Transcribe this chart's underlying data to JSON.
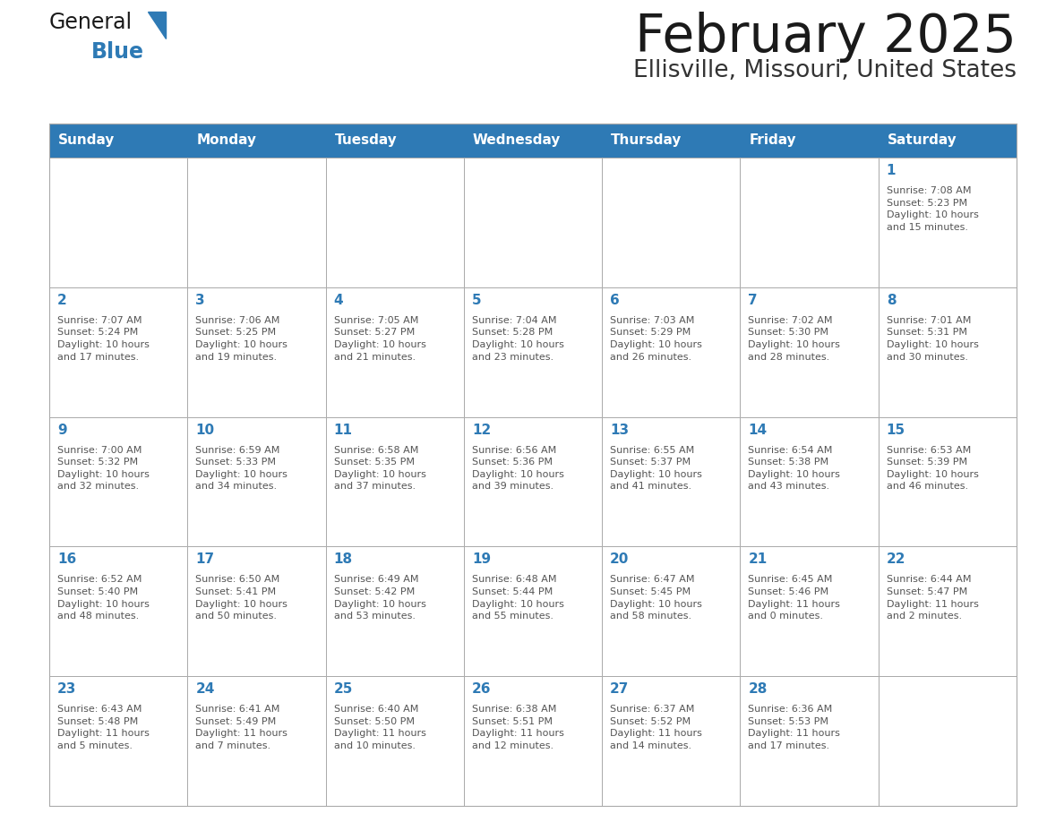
{
  "title": "February 2025",
  "subtitle": "Ellisville, Missouri, United States",
  "header_bg": "#2E7AB5",
  "header_text_color": "#FFFFFF",
  "header_days": [
    "Sunday",
    "Monday",
    "Tuesday",
    "Wednesday",
    "Thursday",
    "Friday",
    "Saturday"
  ],
  "cell_bg": "#FFFFFF",
  "cell_bg_alt": "#F5F5F5",
  "cell_border": "#AAAAAA",
  "day_number_color": "#2E7AB5",
  "info_text_color": "#555555",
  "title_color": "#1A1A1A",
  "subtitle_color": "#333333",
  "logo_general_color": "#1A1A1A",
  "logo_blue_color": "#2E7AB5",
  "weeks": [
    [
      {
        "day": null,
        "info": null
      },
      {
        "day": null,
        "info": null
      },
      {
        "day": null,
        "info": null
      },
      {
        "day": null,
        "info": null
      },
      {
        "day": null,
        "info": null
      },
      {
        "day": null,
        "info": null
      },
      {
        "day": 1,
        "info": "Sunrise: 7:08 AM\nSunset: 5:23 PM\nDaylight: 10 hours\nand 15 minutes."
      }
    ],
    [
      {
        "day": 2,
        "info": "Sunrise: 7:07 AM\nSunset: 5:24 PM\nDaylight: 10 hours\nand 17 minutes."
      },
      {
        "day": 3,
        "info": "Sunrise: 7:06 AM\nSunset: 5:25 PM\nDaylight: 10 hours\nand 19 minutes."
      },
      {
        "day": 4,
        "info": "Sunrise: 7:05 AM\nSunset: 5:27 PM\nDaylight: 10 hours\nand 21 minutes."
      },
      {
        "day": 5,
        "info": "Sunrise: 7:04 AM\nSunset: 5:28 PM\nDaylight: 10 hours\nand 23 minutes."
      },
      {
        "day": 6,
        "info": "Sunrise: 7:03 AM\nSunset: 5:29 PM\nDaylight: 10 hours\nand 26 minutes."
      },
      {
        "day": 7,
        "info": "Sunrise: 7:02 AM\nSunset: 5:30 PM\nDaylight: 10 hours\nand 28 minutes."
      },
      {
        "day": 8,
        "info": "Sunrise: 7:01 AM\nSunset: 5:31 PM\nDaylight: 10 hours\nand 30 minutes."
      }
    ],
    [
      {
        "day": 9,
        "info": "Sunrise: 7:00 AM\nSunset: 5:32 PM\nDaylight: 10 hours\nand 32 minutes."
      },
      {
        "day": 10,
        "info": "Sunrise: 6:59 AM\nSunset: 5:33 PM\nDaylight: 10 hours\nand 34 minutes."
      },
      {
        "day": 11,
        "info": "Sunrise: 6:58 AM\nSunset: 5:35 PM\nDaylight: 10 hours\nand 37 minutes."
      },
      {
        "day": 12,
        "info": "Sunrise: 6:56 AM\nSunset: 5:36 PM\nDaylight: 10 hours\nand 39 minutes."
      },
      {
        "day": 13,
        "info": "Sunrise: 6:55 AM\nSunset: 5:37 PM\nDaylight: 10 hours\nand 41 minutes."
      },
      {
        "day": 14,
        "info": "Sunrise: 6:54 AM\nSunset: 5:38 PM\nDaylight: 10 hours\nand 43 minutes."
      },
      {
        "day": 15,
        "info": "Sunrise: 6:53 AM\nSunset: 5:39 PM\nDaylight: 10 hours\nand 46 minutes."
      }
    ],
    [
      {
        "day": 16,
        "info": "Sunrise: 6:52 AM\nSunset: 5:40 PM\nDaylight: 10 hours\nand 48 minutes."
      },
      {
        "day": 17,
        "info": "Sunrise: 6:50 AM\nSunset: 5:41 PM\nDaylight: 10 hours\nand 50 minutes."
      },
      {
        "day": 18,
        "info": "Sunrise: 6:49 AM\nSunset: 5:42 PM\nDaylight: 10 hours\nand 53 minutes."
      },
      {
        "day": 19,
        "info": "Sunrise: 6:48 AM\nSunset: 5:44 PM\nDaylight: 10 hours\nand 55 minutes."
      },
      {
        "day": 20,
        "info": "Sunrise: 6:47 AM\nSunset: 5:45 PM\nDaylight: 10 hours\nand 58 minutes."
      },
      {
        "day": 21,
        "info": "Sunrise: 6:45 AM\nSunset: 5:46 PM\nDaylight: 11 hours\nand 0 minutes."
      },
      {
        "day": 22,
        "info": "Sunrise: 6:44 AM\nSunset: 5:47 PM\nDaylight: 11 hours\nand 2 minutes."
      }
    ],
    [
      {
        "day": 23,
        "info": "Sunrise: 6:43 AM\nSunset: 5:48 PM\nDaylight: 11 hours\nand 5 minutes."
      },
      {
        "day": 24,
        "info": "Sunrise: 6:41 AM\nSunset: 5:49 PM\nDaylight: 11 hours\nand 7 minutes."
      },
      {
        "day": 25,
        "info": "Sunrise: 6:40 AM\nSunset: 5:50 PM\nDaylight: 11 hours\nand 10 minutes."
      },
      {
        "day": 26,
        "info": "Sunrise: 6:38 AM\nSunset: 5:51 PM\nDaylight: 11 hours\nand 12 minutes."
      },
      {
        "day": 27,
        "info": "Sunrise: 6:37 AM\nSunset: 5:52 PM\nDaylight: 11 hours\nand 14 minutes."
      },
      {
        "day": 28,
        "info": "Sunrise: 6:36 AM\nSunset: 5:53 PM\nDaylight: 11 hours\nand 17 minutes."
      },
      {
        "day": null,
        "info": null
      }
    ]
  ],
  "fig_width": 11.88,
  "fig_height": 9.18,
  "dpi": 100
}
